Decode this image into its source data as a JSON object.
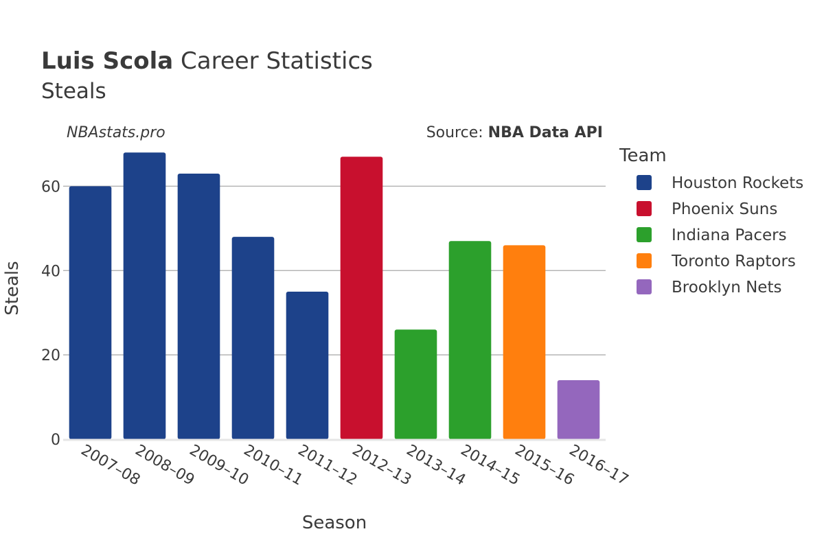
{
  "header": {
    "title_bold": "Luis Scola",
    "title_rest": " Career Statistics",
    "subtitle": "Steals",
    "watermark": "NBAstats.pro",
    "source_prefix": "Source: ",
    "source_bold": "NBA Data API"
  },
  "legend": {
    "title": "Team",
    "items": [
      {
        "label": "Houston Rockets",
        "color": "#1d428a"
      },
      {
        "label": "Phoenix Suns",
        "color": "#c8102e"
      },
      {
        "label": "Indiana Pacers",
        "color": "#2ca02c"
      },
      {
        "label": "Toronto Raptors",
        "color": "#ff7f0e"
      },
      {
        "label": "Brooklyn Nets",
        "color": "#9467bd"
      }
    ]
  },
  "chart_data": {
    "type": "bar",
    "title": "Luis Scola Career Statistics",
    "subtitle": "Steals",
    "xlabel": "Season",
    "ylabel": "Steals",
    "ylim": [
      0,
      70
    ],
    "yticks": [
      0,
      20,
      40,
      60
    ],
    "grid": true,
    "legend_position": "right",
    "categories": [
      "2007–08",
      "2008–09",
      "2009–10",
      "2010–11",
      "2011–12",
      "2012–13",
      "2013–14",
      "2014–15",
      "2015–16",
      "2016–17"
    ],
    "values": [
      60,
      68,
      63,
      48,
      35,
      67,
      26,
      47,
      46,
      14
    ],
    "teams": [
      "Houston Rockets",
      "Houston Rockets",
      "Houston Rockets",
      "Houston Rockets",
      "Houston Rockets",
      "Phoenix Suns",
      "Indiana Pacers",
      "Indiana Pacers",
      "Toronto Raptors",
      "Brooklyn Nets"
    ]
  }
}
